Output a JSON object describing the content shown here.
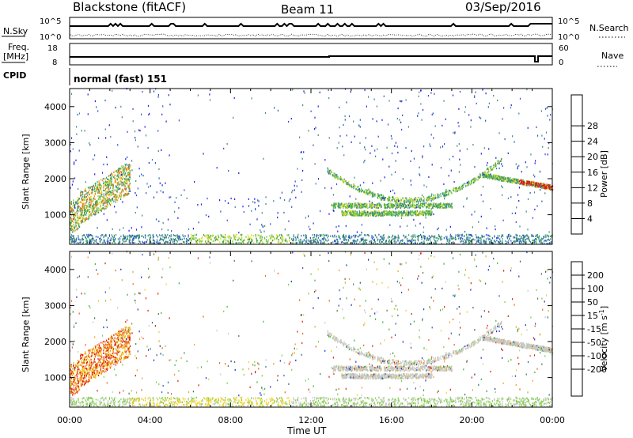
{
  "header": {
    "station": "Blackstone (fitACF)",
    "beam": "Beam 11",
    "date": "03/Sep/2016"
  },
  "labels": {
    "nsky": "N.Sky",
    "freq": "Freq.",
    "mhz": "[MHz]",
    "cpid": "CPID",
    "nsearch": "N.Search",
    "nave": "Nave",
    "cpid_value": "normal (fast) 151",
    "time_axis": "Time UT",
    "range_axis": "Slant Range [km]",
    "power_label": "Power [dB]",
    "velocity_label": "Velocity [m s",
    "velocity_exp": "-1",
    "velocity_tail": "]"
  },
  "ticks": {
    "nsky_top": "10^5",
    "nsky_bottom": "10^0",
    "nsearch_top": "10^5",
    "nsearch_bottom": "10^0",
    "freq_top": "18",
    "freq_bottom": "8",
    "nave_top": "60",
    "nave_bottom": "0"
  },
  "chart_data": {
    "type": "heatmap",
    "x": {
      "label": "Time UT",
      "ticks": [
        "00:00",
        "04:00",
        "08:00",
        "12:00",
        "16:00",
        "20:00",
        "00:00"
      ],
      "range_hours": [
        0,
        24
      ]
    },
    "y": {
      "label": "Slant Range [km]",
      "ticks": [
        1000,
        2000,
        3000,
        4000
      ],
      "range_km": [
        180,
        4500
      ]
    },
    "power_scale": {
      "label": "Power [dB]",
      "ticks": [
        4,
        8,
        12,
        16,
        20,
        24,
        28
      ],
      "colors": [
        "#1e1ee6",
        "#2b55c8",
        "#3f8a8a",
        "#3aa05a",
        "#66c83c",
        "#e6dc28",
        "#f0a01e",
        "#ee6a14",
        "#e01c0c"
      ]
    },
    "velocity_scale": {
      "label": "Velocity [m s-1]",
      "ticks": [
        200,
        100,
        50,
        15,
        -15,
        -50,
        -100,
        -200
      ],
      "colors": [
        "#1e32c8",
        "#3c5aa0",
        "#3a8050",
        "#3cb43c",
        "#78d23c",
        "#c8c8c0",
        "#f0d228",
        "#f0a01e",
        "#ee6414",
        "#e01c0c"
      ]
    },
    "features": [
      {
        "name": "early arc",
        "time_hours": [
          0,
          3
        ],
        "range_km": [
          700,
          2300
        ],
        "power_db": "8-24",
        "velocity": "-50 to -200"
      },
      {
        "name": "near-range clutter",
        "time_hours": [
          0,
          24
        ],
        "range_km": [
          180,
          450
        ],
        "power_db": "4-16",
        "velocity": "15 to -50"
      },
      {
        "name": "evening arcs",
        "time_hours": [
          12.5,
          24
        ],
        "range_km": [
          900,
          2600
        ],
        "power_db": "8-28",
        "velocity": "-15 to 15"
      }
    ]
  }
}
